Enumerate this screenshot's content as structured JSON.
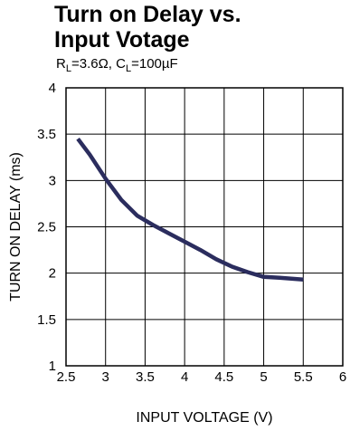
{
  "header": {
    "title_line1": "Turn on Delay vs.",
    "title_line2": "Input Votage",
    "cond_r_var": "R",
    "cond_r_sub": "L",
    "cond_r_val": "=3.6Ω, ",
    "cond_c_var": "C",
    "cond_c_sub": "L",
    "cond_c_val": "=100µF"
  },
  "chart_data": {
    "type": "line",
    "title": "Turn on Delay vs. Input Votage",
    "subtitle": "RL=3.6Ω, CL=100µF",
    "xlabel": "INPUT VOLTAGE (V)",
    "ylabel": "TURN ON DELAY (ms)",
    "xlim": [
      2.5,
      6
    ],
    "ylim": [
      1,
      4
    ],
    "xticks": [
      "2.5",
      "3",
      "3.5",
      "4",
      "4.5",
      "5",
      "5.5",
      "6"
    ],
    "yticks": [
      "1",
      "1.5",
      "2",
      "2.5",
      "3",
      "3.5",
      "4"
    ],
    "grid": true,
    "line_color": "#2b2d5e",
    "series": [
      {
        "x": [
          2.65,
          2.8,
          3.0,
          3.2,
          3.4,
          3.6,
          3.8,
          4.0,
          4.2,
          4.4,
          4.6,
          4.8,
          5.0,
          5.2,
          5.5
        ],
        "y": [
          3.45,
          3.28,
          3.02,
          2.79,
          2.62,
          2.52,
          2.43,
          2.34,
          2.25,
          2.15,
          2.07,
          2.01,
          1.96,
          1.95,
          1.93
        ]
      }
    ]
  }
}
